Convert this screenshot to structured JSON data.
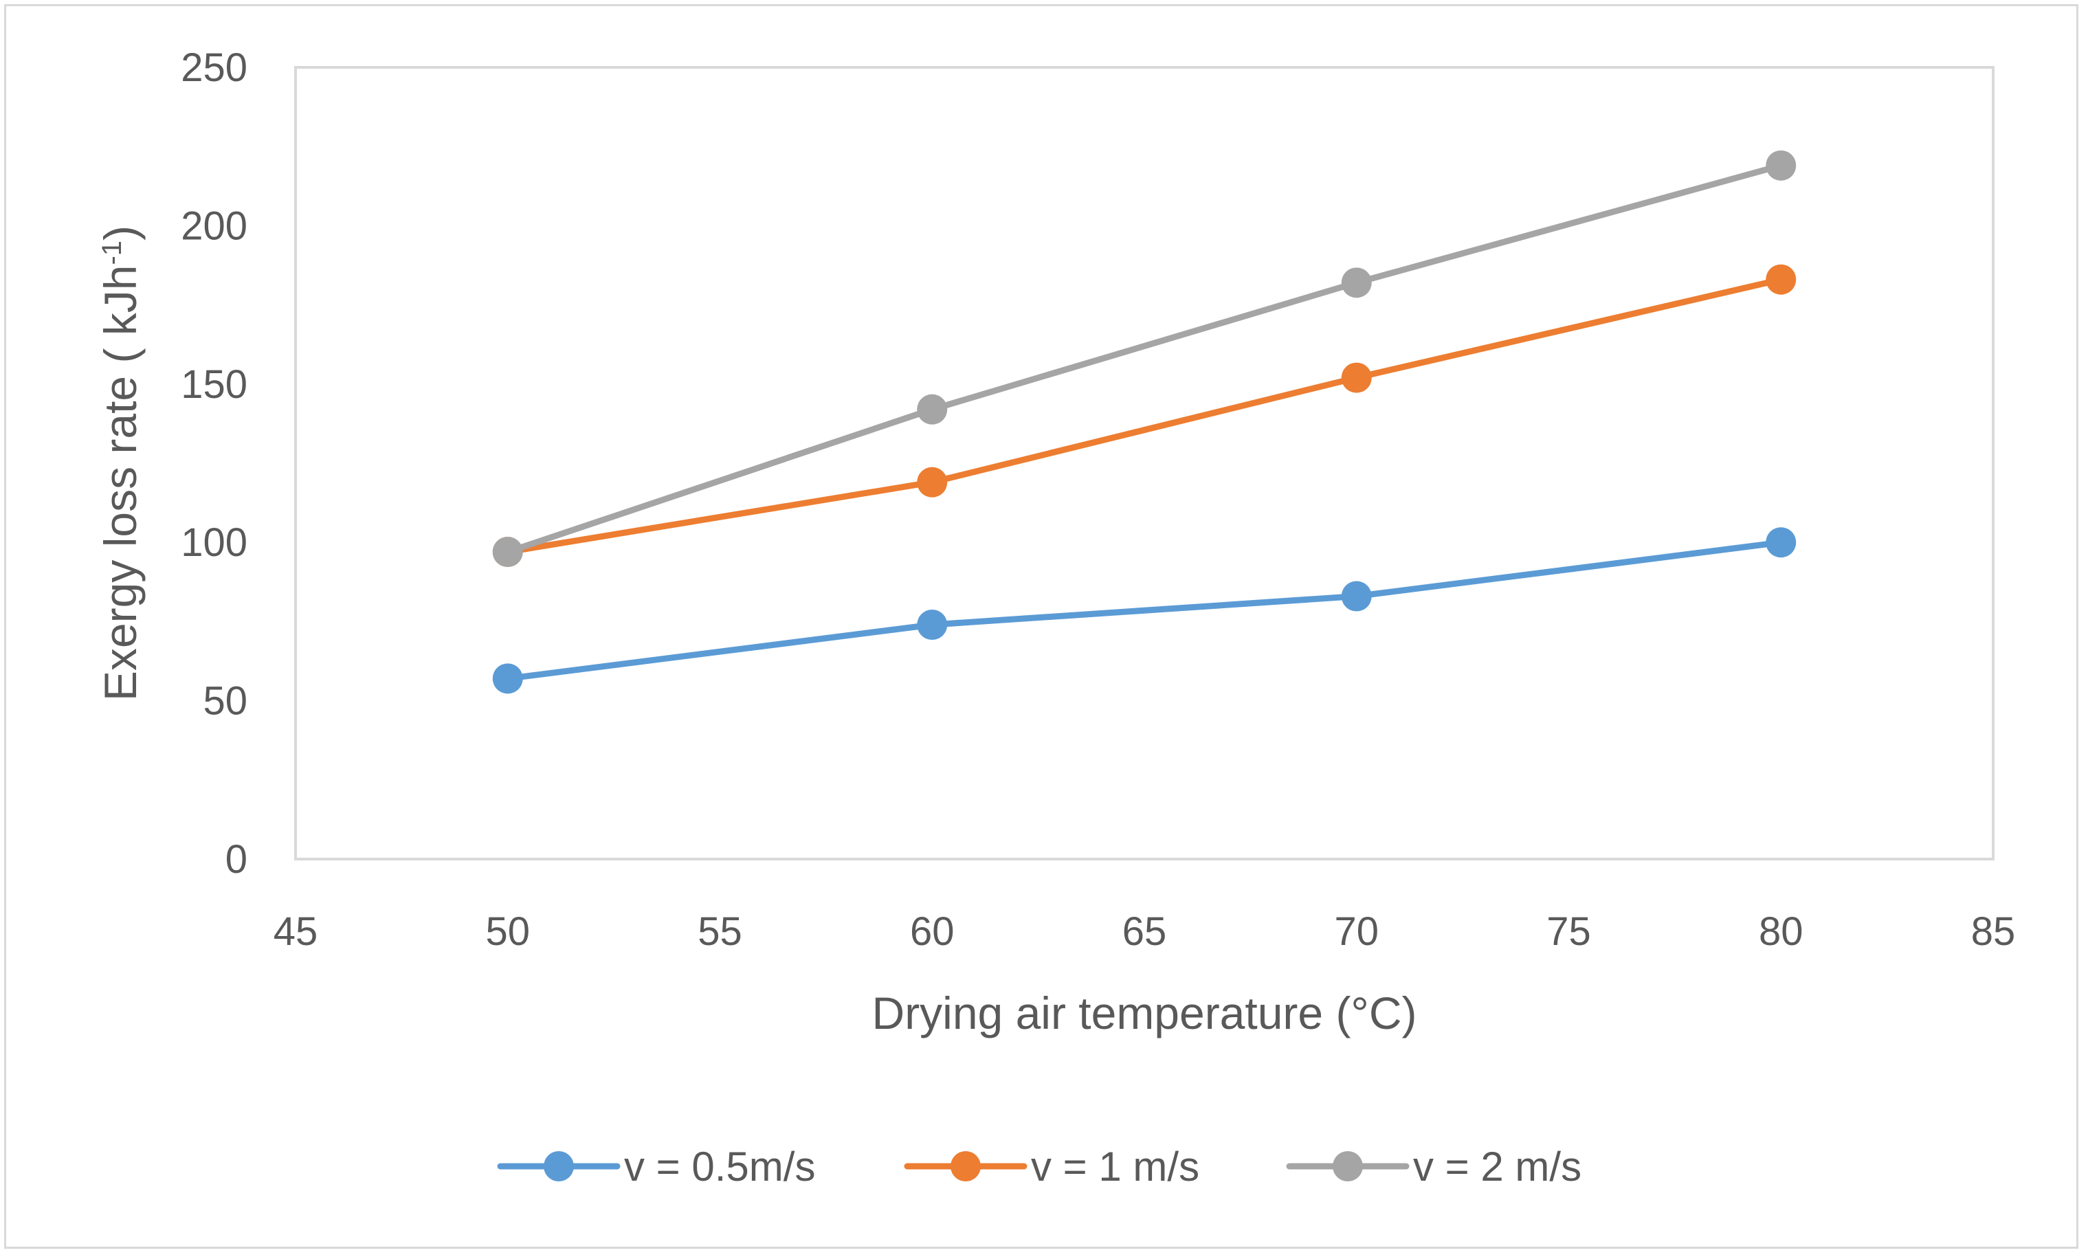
{
  "chart_data": {
    "type": "line",
    "title": "",
    "xlabel": "Drying air temperature (°C)",
    "ylabel": {
      "main": "Exergy loss rate ( kJh",
      "sup": "-1",
      "close": ")"
    },
    "xlim": [
      45,
      85
    ],
    "ylim": [
      0,
      250
    ],
    "xticks": [
      "45",
      "50",
      "55",
      "60",
      "65",
      "70",
      "75",
      "80",
      "85"
    ],
    "yticks": [
      "0",
      "50",
      "100",
      "150",
      "200",
      "250"
    ],
    "x": [
      50,
      60,
      70,
      80
    ],
    "series": [
      {
        "name": "v = 0.5m/s",
        "color": "#5b9bd5",
        "values": [
          57,
          74,
          83,
          100
        ]
      },
      {
        "name": "v = 1 m/s",
        "color": "#ed7d31",
        "values": [
          97,
          119,
          152,
          183
        ]
      },
      {
        "name": "v = 2 m/s",
        "color": "#a5a5a5",
        "values": [
          97,
          142,
          182,
          219
        ]
      }
    ],
    "legend_position": "bottom",
    "grid": false,
    "plot_border_color": "#d9d9d9",
    "text_color": "#595959"
  }
}
